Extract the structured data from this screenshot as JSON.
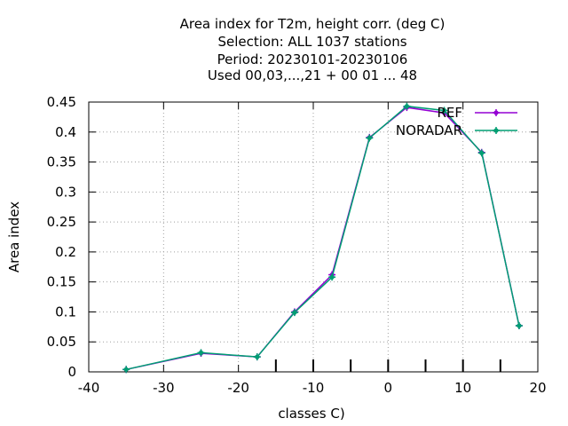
{
  "chart_data": {
    "type": "line",
    "title": [
      "Area index  for T2m, height corr. (deg C)",
      "Selection: ALL   1037 stations",
      "Period: 20230101-20230106",
      "Used  00,03,...,21  + 00 01 ... 48"
    ],
    "xlabel": "classes C)",
    "ylabel": "Area index",
    "xlim": [
      -40,
      20
    ],
    "ylim": [
      0,
      0.45
    ],
    "xticks": [
      -40,
      -30,
      -20,
      -10,
      0,
      10,
      20
    ],
    "xtick_labels": [
      "-40",
      "-30",
      "-20",
      "-10",
      "0",
      "10",
      "20"
    ],
    "yticks": [
      0,
      0.05,
      0.1,
      0.15,
      0.2,
      0.25,
      0.3,
      0.35,
      0.4,
      0.45
    ],
    "ytick_labels": [
      "0",
      "0.05",
      "0.1",
      "0.15",
      "0.2",
      "0.25",
      "0.3",
      "0.35",
      "0.4",
      "0.45"
    ],
    "minor_bottom_ticks": [
      -15,
      -10,
      -5,
      0,
      5,
      10,
      15
    ],
    "grid": true,
    "legend_position": "top-right",
    "series": [
      {
        "name": "REF",
        "color": "#9400d3",
        "x": [
          -35,
          -25,
          -17.5,
          -12.5,
          -7.5,
          -2.5,
          2.5,
          7.5,
          12.5,
          17.5
        ],
        "y": [
          0.004,
          0.031,
          0.025,
          0.1,
          0.162,
          0.391,
          0.441,
          0.432,
          0.366,
          0.077
        ]
      },
      {
        "name": "NORADAR",
        "color": "#009e73",
        "x": [
          -35,
          -25,
          -17.5,
          -12.5,
          -7.5,
          -2.5,
          2.5,
          7.5,
          12.5,
          17.5
        ],
        "y": [
          0.004,
          0.032,
          0.025,
          0.099,
          0.158,
          0.39,
          0.443,
          0.436,
          0.365,
          0.077
        ]
      }
    ]
  }
}
